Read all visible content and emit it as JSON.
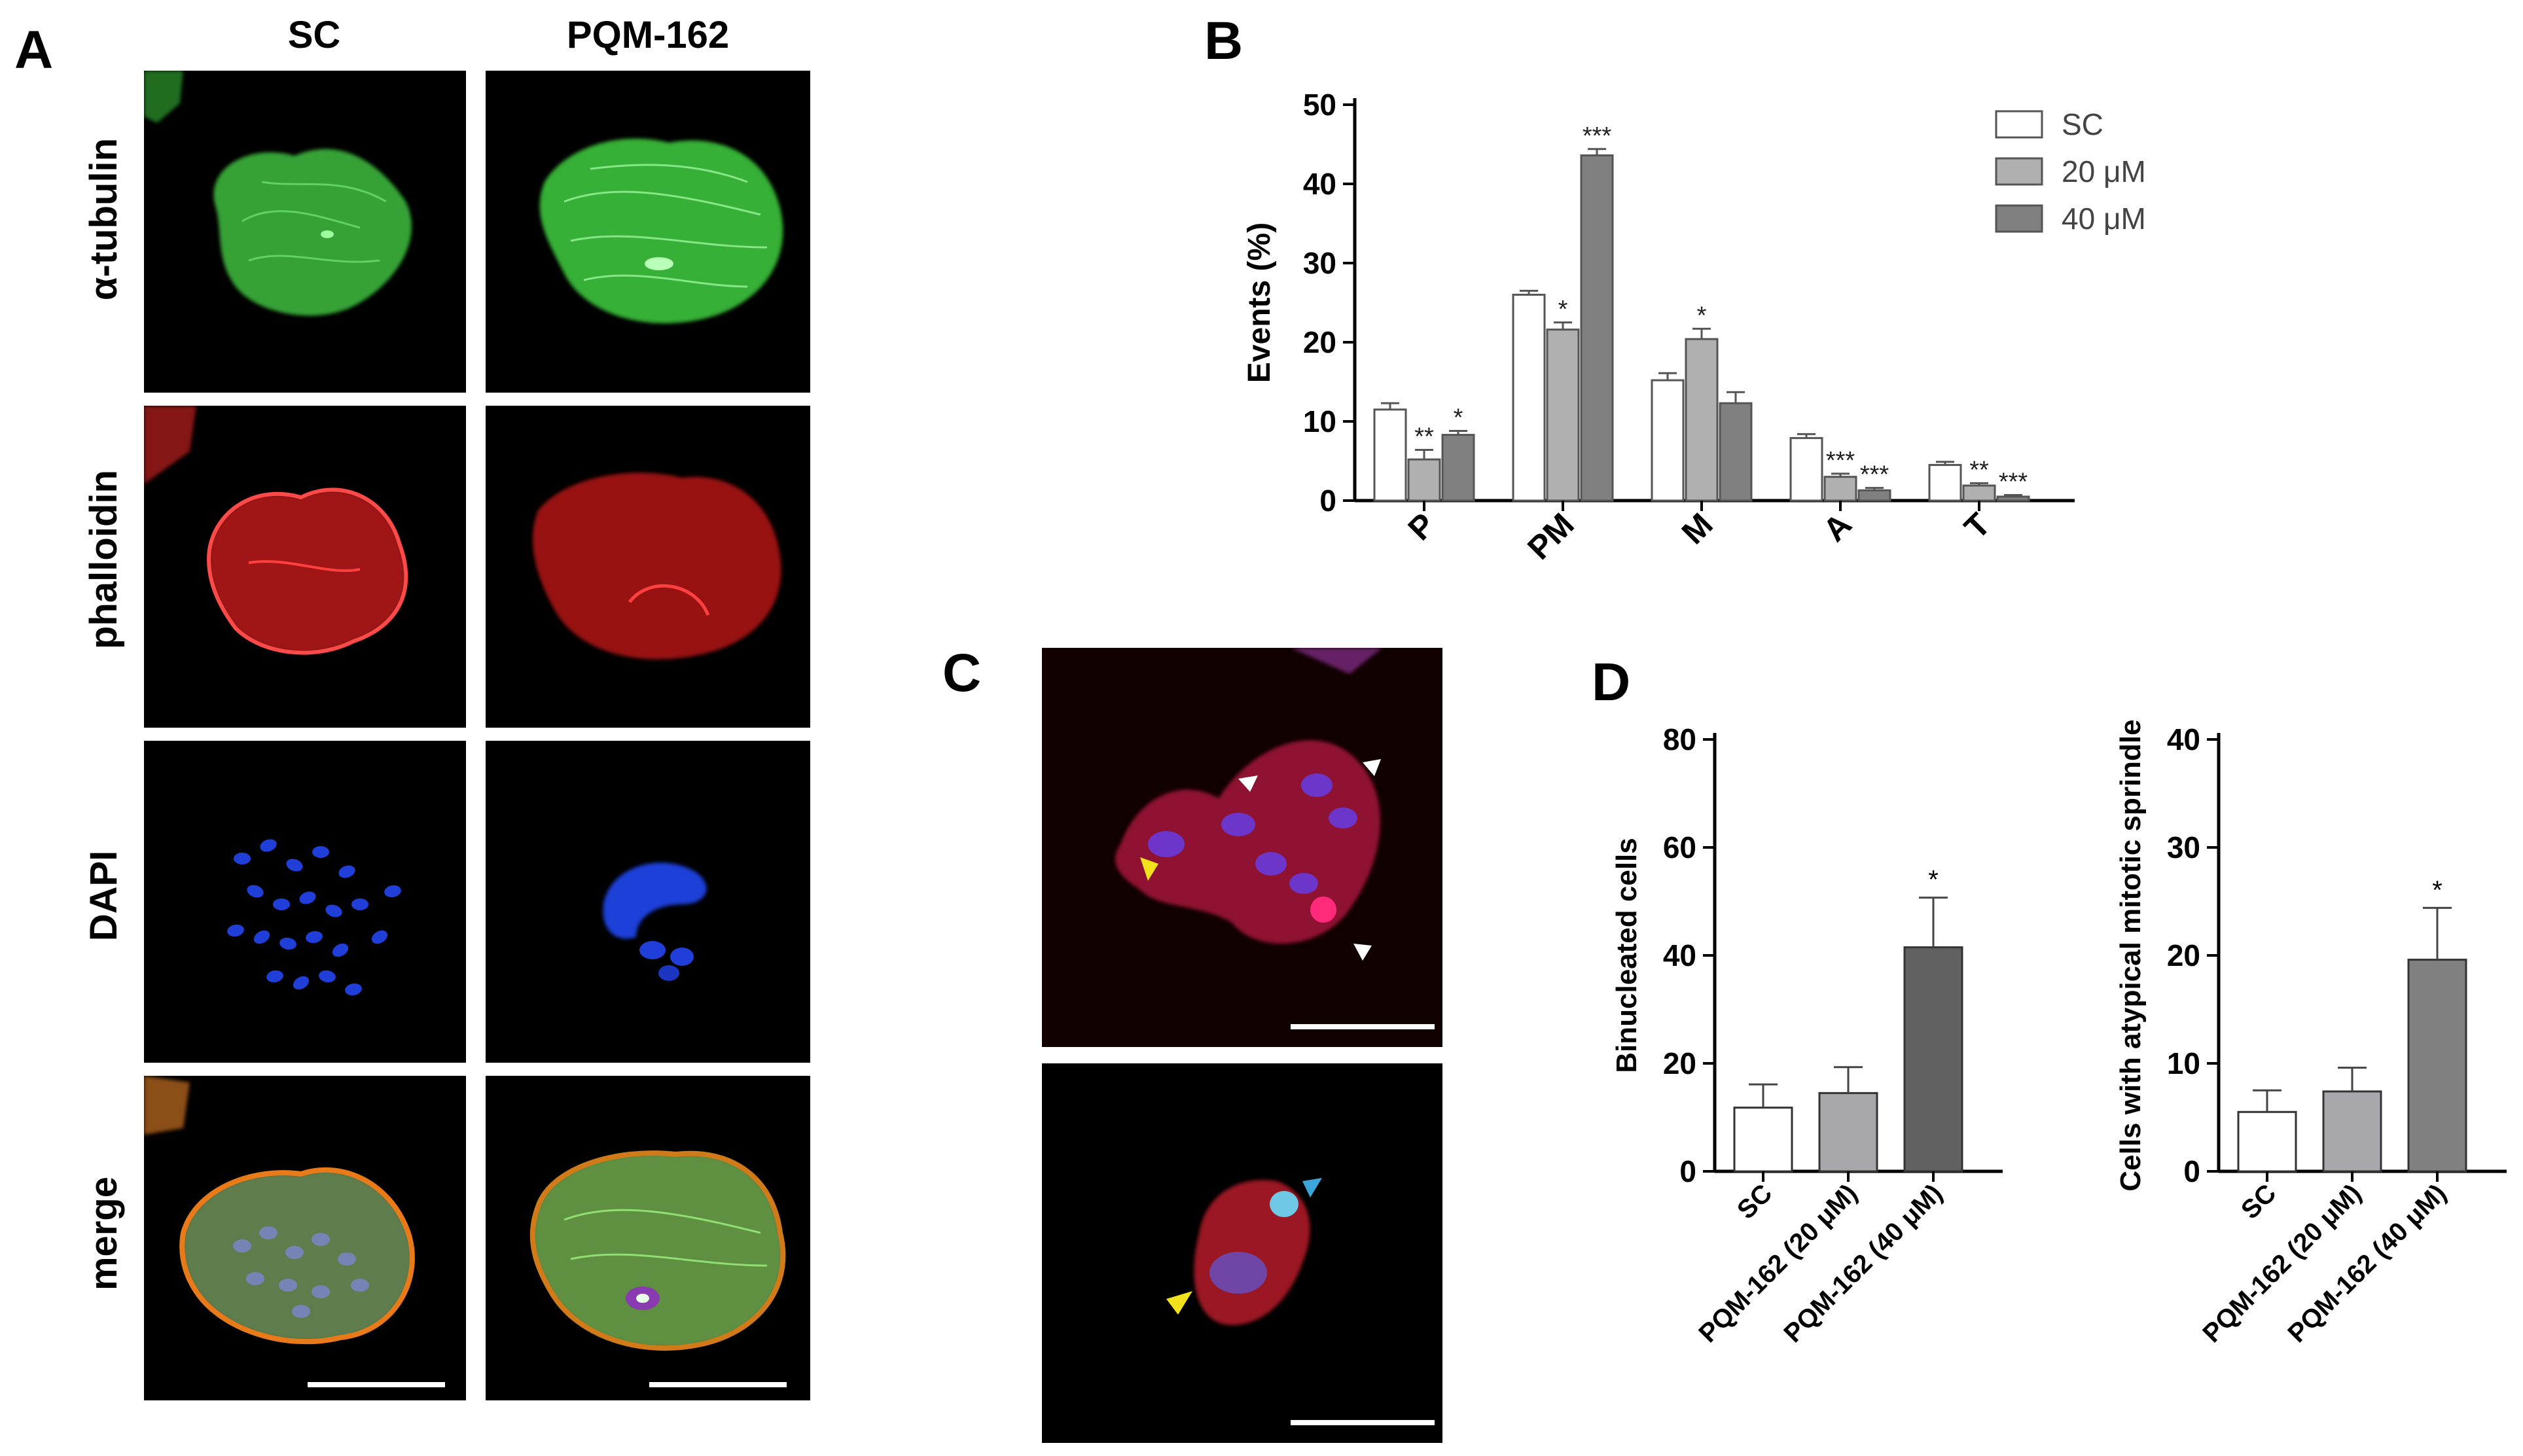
{
  "panels": {
    "a": {
      "letter": "A",
      "columns": [
        "SC",
        "PQM-162"
      ],
      "rows": [
        "α-tubulin",
        "phalloidin",
        "DAPI",
        "merge"
      ]
    },
    "b": {
      "letter": "B"
    },
    "c": {
      "letter": "C"
    },
    "d": {
      "letter": "D"
    }
  },
  "colors": {
    "sc_bar": "#ffffff",
    "uM20_bar": "#b0b0b0",
    "uM40_bar": "#808080",
    "d_pqm20": "#a8a8ac",
    "d_pqm40": "#616161",
    "tubulin": "#3fcf3f",
    "phalloidin": "#e02020",
    "dapi": "#1f3fd8",
    "arrow_yellow": "#f2e21b",
    "arrow_white": "#ffffff",
    "arrow_cyan": "#3ba6d9"
  },
  "chart_data": [
    {
      "id": "B",
      "type": "bar",
      "categories": [
        "P",
        "PM",
        "M",
        "A",
        "T"
      ],
      "series": [
        {
          "name": "SC",
          "values": [
            11.5,
            26,
            15.2,
            7.9,
            4.5
          ],
          "errors": [
            0.8,
            0.5,
            0.9,
            0.5,
            0.4
          ],
          "sig": [
            "",
            "",
            "",
            "",
            ""
          ]
        },
        {
          "name": "20 μM",
          "values": [
            5.2,
            21.6,
            20.4,
            3.0,
            1.9
          ],
          "errors": [
            1.2,
            0.9,
            1.3,
            0.4,
            0.3
          ],
          "sig": [
            "**",
            "*",
            "*",
            "***",
            "**"
          ]
        },
        {
          "name": "40 μM",
          "values": [
            8.3,
            43.6,
            12.3,
            1.3,
            0.5
          ],
          "errors": [
            0.5,
            0.8,
            1.4,
            0.3,
            0.2
          ],
          "sig": [
            "*",
            "***",
            "",
            "***",
            "***"
          ]
        }
      ],
      "ylabel": "Events (%)",
      "ylim": [
        0,
        50
      ],
      "yticks": [
        0,
        10,
        20,
        30,
        40,
        50
      ],
      "legend": "top-right"
    },
    {
      "id": "D1",
      "type": "bar",
      "categories": [
        "SC",
        "PQM-162 (20 μM)",
        "PQM-162 (40 μM)"
      ],
      "values": [
        11.8,
        14.5,
        41.5
      ],
      "errors": [
        4.3,
        4.8,
        9.2
      ],
      "sig": [
        "",
        "",
        "*"
      ],
      "ylabel": "Binucleated cells",
      "ylim": [
        0,
        80
      ],
      "yticks": [
        0,
        20,
        40,
        60,
        80
      ]
    },
    {
      "id": "D2",
      "type": "bar",
      "categories": [
        "SC",
        "PQM-162 (20 μM)",
        "PQM-162 (40 μM)"
      ],
      "values": [
        5.5,
        7.4,
        19.6
      ],
      "errors": [
        2.0,
        2.2,
        4.8
      ],
      "sig": [
        "",
        "",
        "*"
      ],
      "ylabel": "Cells with atypical mitotic sprindle",
      "ylim": [
        0,
        40
      ],
      "yticks": [
        0,
        10,
        20,
        30,
        40
      ]
    }
  ]
}
